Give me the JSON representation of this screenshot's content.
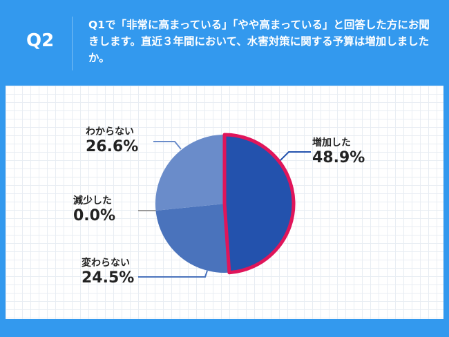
{
  "header": {
    "question_number": "Q2",
    "question_text": "Q1で「非常に高まっている」「やや高まっている」と回答した方にお聞きします。直近３年間において、水害対策に関する予算は増加しましたか。"
  },
  "chart_data": {
    "type": "pie",
    "categories": [
      "増加した",
      "変わらない",
      "減少した",
      "わからない"
    ],
    "values": [
      48.9,
      24.5,
      0.0,
      26.6
    ],
    "labels": [
      "48.9%",
      "24.5%",
      "0.0%",
      "26.6%"
    ],
    "colors": [
      "#2352ad",
      "#4a73bc",
      "#8a8a8a",
      "#6a8cca"
    ],
    "highlight": {
      "category": "増加した",
      "border_color": "#e0155a"
    }
  }
}
